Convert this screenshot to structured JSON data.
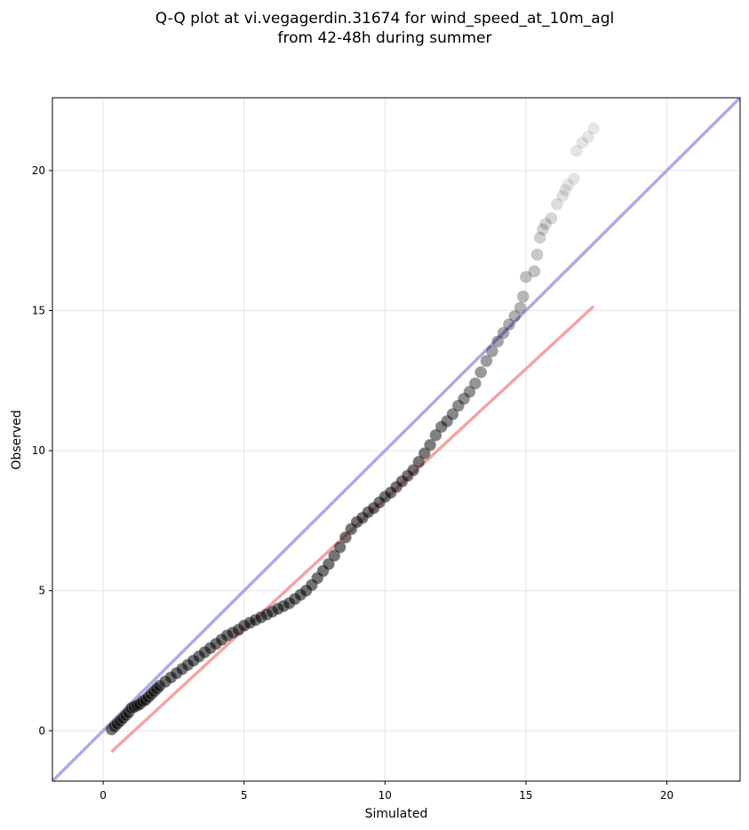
{
  "chart_data": {
    "type": "scatter",
    "title": [
      "Q-Q plot at vi.vegagerdin.31674 for wind_speed_at_10m_agl",
      "from 42-48h during summer"
    ],
    "xlabel": "Simulated",
    "ylabel": "Observed",
    "xlim": [
      -1.8,
      22.6
    ],
    "ylim": [
      -1.8,
      22.6
    ],
    "xticks": [
      0,
      5,
      10,
      15,
      20
    ],
    "yticks": [
      0,
      5,
      10,
      15,
      20
    ],
    "grid": true,
    "reference_line": {
      "name": "",
      "color": "#aaaaee",
      "x": [
        -1.8,
        22.6
      ],
      "y": [
        -1.8,
        22.6
      ]
    },
    "fit_line": {
      "name": "",
      "color": "#f4a4a4",
      "x": [
        0.3,
        17.4
      ],
      "y": [
        -0.75,
        15.15
      ]
    },
    "series": [
      {
        "name": "",
        "color": "#000000",
        "x": [
          0.3,
          0.4,
          0.5,
          0.6,
          0.7,
          0.8,
          0.9,
          1.0,
          1.1,
          1.2,
          1.3,
          1.4,
          1.5,
          1.6,
          1.7,
          1.8,
          1.9,
          2.0,
          2.2,
          2.4,
          2.6,
          2.8,
          3.0,
          3.2,
          3.4,
          3.6,
          3.8,
          4.0,
          4.2,
          4.4,
          4.6,
          4.8,
          5.0,
          5.2,
          5.4,
          5.6,
          5.8,
          6.0,
          6.2,
          6.4,
          6.6,
          6.8,
          7.0,
          7.2,
          7.4,
          7.6,
          7.8,
          8.0,
          8.2,
          8.4,
          8.6,
          8.8,
          9.0,
          9.2,
          9.4,
          9.6,
          9.8,
          10.0,
          10.2,
          10.4,
          10.6,
          10.8,
          11.0,
          11.2,
          11.4,
          11.6,
          11.8,
          12.0,
          12.2,
          12.4,
          12.6,
          12.8,
          13.0,
          13.2,
          13.4,
          13.6,
          13.8,
          14.0,
          14.2,
          14.4,
          14.6,
          14.8,
          14.9,
          15.0,
          15.3,
          15.4,
          15.5,
          15.6,
          15.7,
          15.9,
          16.1,
          16.3,
          16.4,
          16.5,
          16.7,
          16.8,
          17.0,
          17.2,
          17.4
        ],
        "y": [
          0.05,
          0.15,
          0.25,
          0.35,
          0.45,
          0.55,
          0.65,
          0.8,
          0.85,
          0.9,
          0.95,
          1.05,
          1.1,
          1.2,
          1.3,
          1.4,
          1.5,
          1.6,
          1.75,
          1.9,
          2.05,
          2.2,
          2.35,
          2.5,
          2.65,
          2.8,
          2.95,
          3.1,
          3.25,
          3.4,
          3.5,
          3.6,
          3.75,
          3.85,
          3.95,
          4.05,
          4.15,
          4.25,
          4.35,
          4.45,
          4.55,
          4.7,
          4.85,
          5.0,
          5.2,
          5.45,
          5.7,
          5.95,
          6.25,
          6.55,
          6.9,
          7.2,
          7.45,
          7.6,
          7.8,
          7.95,
          8.15,
          8.35,
          8.5,
          8.7,
          8.9,
          9.1,
          9.3,
          9.6,
          9.9,
          10.2,
          10.55,
          10.85,
          11.05,
          11.3,
          11.6,
          11.85,
          12.1,
          12.4,
          12.8,
          13.2,
          13.55,
          13.9,
          14.2,
          14.5,
          14.8,
          15.1,
          15.5,
          16.2,
          16.4,
          17.0,
          17.6,
          17.9,
          18.1,
          18.3,
          18.8,
          19.1,
          19.3,
          19.5,
          19.7,
          20.7,
          21.0,
          21.2,
          21.5
        ]
      }
    ]
  }
}
